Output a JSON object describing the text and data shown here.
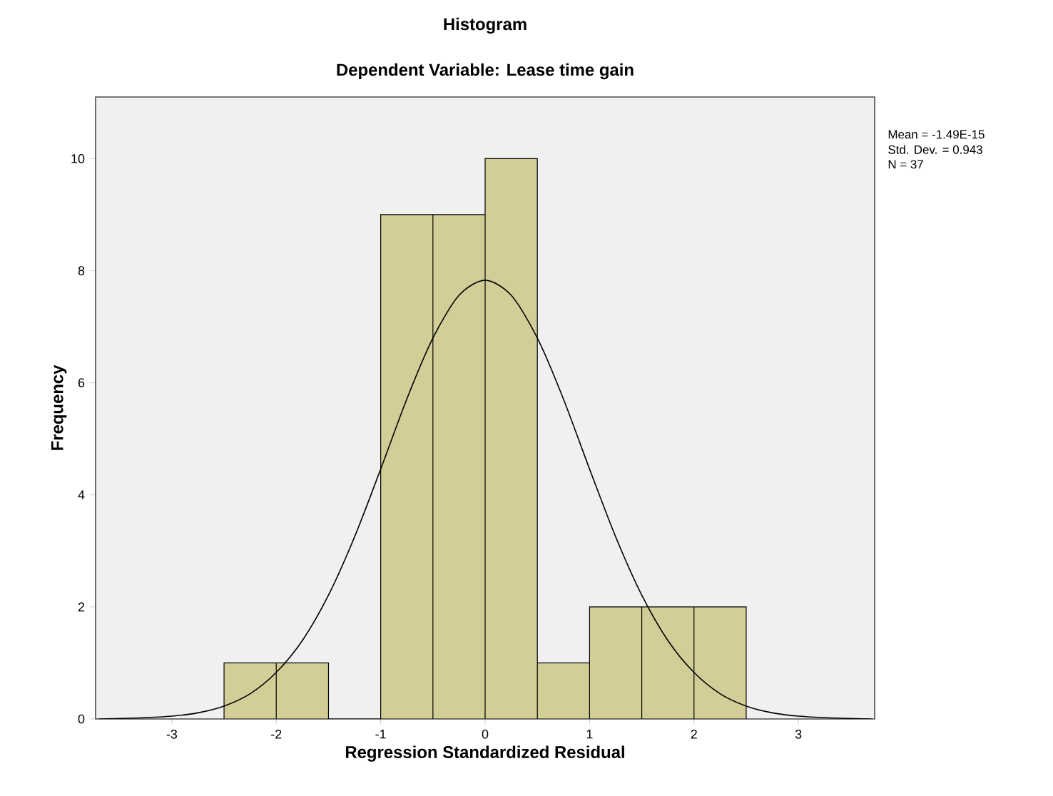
{
  "chart_data": {
    "type": "histogram",
    "title": "Histogram",
    "subtitle": "Dependent Variable: Lease time gain",
    "xlabel": "Regression Standardized Residual",
    "ylabel": "Frequency",
    "bins": [
      -2.5,
      -2.0,
      -1.5,
      -1.0,
      -0.5,
      0.0,
      0.5,
      1.0,
      1.5,
      2.0,
      2.5
    ],
    "values": [
      1,
      1,
      0,
      9,
      9,
      10,
      1,
      2,
      2,
      2
    ],
    "color": "#d3ce97",
    "series": [
      {
        "type": "line",
        "color": "#000000",
        "x": [
          -3.7,
          -3.3,
          -3.0,
          -2.75,
          -2.5,
          -2.25,
          -2.0,
          -1.75,
          -1.5,
          -1.25,
          -1.0,
          -0.75,
          -0.5,
          -0.25,
          0.0,
          0.25,
          0.5,
          0.75,
          1.0,
          1.25,
          1.5,
          1.75,
          2.0,
          2.25,
          2.5,
          2.75,
          3.0,
          3.3,
          3.7
        ],
        "values": [
          0.0,
          0.02,
          0.05,
          0.11,
          0.23,
          0.45,
          0.83,
          1.4,
          2.21,
          3.25,
          4.46,
          5.71,
          6.8,
          7.56,
          7.83,
          7.56,
          6.8,
          5.71,
          4.46,
          3.25,
          2.21,
          1.4,
          0.83,
          0.45,
          0.23,
          0.11,
          0.05,
          0.02,
          0.0
        ]
      }
    ],
    "xlim": [
      -3.73,
      3.73
    ],
    "ylim": [
      0,
      11.1
    ],
    "xticks": [
      -3,
      -2,
      -1,
      0,
      1,
      2,
      3
    ],
    "yticks": [
      0,
      2,
      4,
      6,
      8,
      10
    ],
    "annotations": [
      "Mean = -1.49E-15",
      "Std. Dev. = 0.943",
      "N = 37"
    ]
  }
}
